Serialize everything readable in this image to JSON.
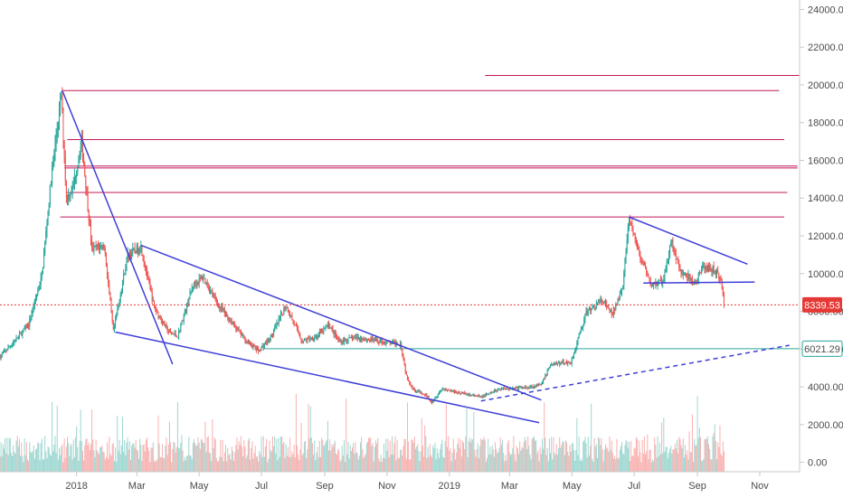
{
  "chart_data": {
    "type": "candlestick",
    "title": "",
    "xlabel": "",
    "ylabel": "",
    "ylim": [
      -500,
      24500
    ],
    "y_ticks": [
      "24000.00",
      "22000.00",
      "20000.00",
      "18000.00",
      "16000.00",
      "14000.00",
      "12000.00",
      "10000.00",
      "8000.00",
      "6000.00",
      "4000.00",
      "2000.00",
      "0.00"
    ],
    "x_ticks": [
      {
        "label": "2018",
        "date": "2018-01-01"
      },
      {
        "label": "Mar",
        "date": "2018-03-01"
      },
      {
        "label": "May",
        "date": "2018-05-01"
      },
      {
        "label": "Jul",
        "date": "2018-07-01"
      },
      {
        "label": "Sep",
        "date": "2018-09-01"
      },
      {
        "label": "Nov",
        "date": "2018-11-01"
      },
      {
        "label": "2019",
        "date": "2019-01-01"
      },
      {
        "label": "Mar",
        "date": "2019-03-01"
      },
      {
        "label": "May",
        "date": "2019-05-01"
      },
      {
        "label": "Jul",
        "date": "2019-07-01"
      },
      {
        "label": "Sep",
        "date": "2019-09-01"
      },
      {
        "label": "Nov",
        "date": "2019-11-01"
      }
    ],
    "x_range": [
      "2017-10-18",
      "2019-12-10"
    ],
    "last_price": "8339.53",
    "marked_level": "6021.29",
    "colors": {
      "up": "#26a69a",
      "down": "#ef5350",
      "trend": "#3f3fd8",
      "hline": "#c2185b",
      "last_price": "#e53935",
      "level": "#26a69a"
    },
    "price_path": [
      [
        "2017-10-18",
        5600
      ],
      [
        "2017-11-01",
        6400
      ],
      [
        "2017-11-15",
        7300
      ],
      [
        "2017-11-28",
        9900
      ],
      [
        "2017-12-07",
        15000
      ],
      [
        "2017-12-17",
        19500
      ],
      [
        "2017-12-22",
        14000
      ],
      [
        "2017-12-28",
        14500
      ],
      [
        "2018-01-06",
        17000
      ],
      [
        "2018-01-16",
        11300
      ],
      [
        "2018-01-28",
        11500
      ],
      [
        "2018-02-06",
        6900
      ],
      [
        "2018-02-20",
        11000
      ],
      [
        "2018-03-05",
        11400
      ],
      [
        "2018-03-18",
        8200
      ],
      [
        "2018-04-01",
        6900
      ],
      [
        "2018-04-10",
        6700
      ],
      [
        "2018-04-25",
        9400
      ],
      [
        "2018-05-05",
        9800
      ],
      [
        "2018-05-20",
        8300
      ],
      [
        "2018-06-01",
        7500
      ],
      [
        "2018-06-15",
        6500
      ],
      [
        "2018-06-28",
        5900
      ],
      [
        "2018-07-10",
        6600
      ],
      [
        "2018-07-25",
        8300
      ],
      [
        "2018-08-10",
        6400
      ],
      [
        "2018-08-25",
        6700
      ],
      [
        "2018-09-05",
        7300
      ],
      [
        "2018-09-15",
        6400
      ],
      [
        "2018-10-01",
        6600
      ],
      [
        "2018-10-15",
        6500
      ],
      [
        "2018-11-01",
        6350
      ],
      [
        "2018-11-14",
        6300
      ],
      [
        "2018-11-20",
        4600
      ],
      [
        "2018-11-26",
        3900
      ],
      [
        "2018-12-10",
        3500
      ],
      [
        "2018-12-15",
        3200
      ],
      [
        "2018-12-25",
        3900
      ],
      [
        "2019-01-10",
        3700
      ],
      [
        "2019-02-01",
        3450
      ],
      [
        "2019-02-20",
        3900
      ],
      [
        "2019-03-15",
        3950
      ],
      [
        "2019-04-01",
        4100
      ],
      [
        "2019-04-10",
        5200
      ],
      [
        "2019-04-30",
        5300
      ],
      [
        "2019-05-15",
        7900
      ],
      [
        "2019-05-30",
        8600
      ],
      [
        "2019-06-10",
        7800
      ],
      [
        "2019-06-20",
        9500
      ],
      [
        "2019-06-26",
        12900
      ],
      [
        "2019-07-05",
        11200
      ],
      [
        "2019-07-17",
        9400
      ],
      [
        "2019-07-30",
        9600
      ],
      [
        "2019-08-06",
        11800
      ],
      [
        "2019-08-15",
        10100
      ],
      [
        "2019-08-30",
        9500
      ],
      [
        "2019-09-06",
        10300
      ],
      [
        "2019-09-18",
        10200
      ],
      [
        "2019-09-24",
        9600
      ],
      [
        "2019-09-27",
        8340
      ]
    ],
    "volume_ylim": [
      -500,
      24500
    ],
    "horizontal_levels": [
      {
        "price": 20500,
        "from": "2019-02-05",
        "to": "2019-12-10"
      },
      {
        "price": 19700,
        "from": "2017-12-18",
        "to": "2019-11-20"
      },
      {
        "price": 17100,
        "from": "2017-12-23",
        "to": "2019-11-25"
      },
      {
        "price": 15700,
        "from": "2017-12-20",
        "to": "2019-12-08"
      },
      {
        "price": 15600,
        "from": "2017-12-20",
        "to": "2019-12-08"
      },
      {
        "price": 14300,
        "from": "2017-12-22",
        "to": "2019-11-28"
      },
      {
        "price": 13000,
        "from": "2017-12-16",
        "to": "2019-11-25"
      },
      {
        "price": 6021.29,
        "from": "2018-07-03",
        "to": "2019-12-10"
      }
    ],
    "trendlines": [
      {
        "from": [
          "2017-12-18",
          19700
        ],
        "to": [
          "2018-04-05",
          5200
        ],
        "style": "solid"
      },
      {
        "from": [
          "2018-03-05",
          11500
        ],
        "to": [
          "2019-04-01",
          3300
        ],
        "style": "solid"
      },
      {
        "from": [
          "2018-02-08",
          6900
        ],
        "to": [
          "2019-03-30",
          2100
        ],
        "style": "solid"
      },
      {
        "from": [
          "2019-02-01",
          3250
        ],
        "to": [
          "2019-11-30",
          6200
        ],
        "style": "dashed"
      },
      {
        "from": [
          "2019-06-26",
          13000
        ],
        "to": [
          "2019-10-20",
          10500
        ],
        "style": "solid"
      },
      {
        "from": [
          "2019-07-10",
          9500
        ],
        "to": [
          "2019-10-27",
          9550
        ],
        "style": "solid"
      }
    ]
  }
}
